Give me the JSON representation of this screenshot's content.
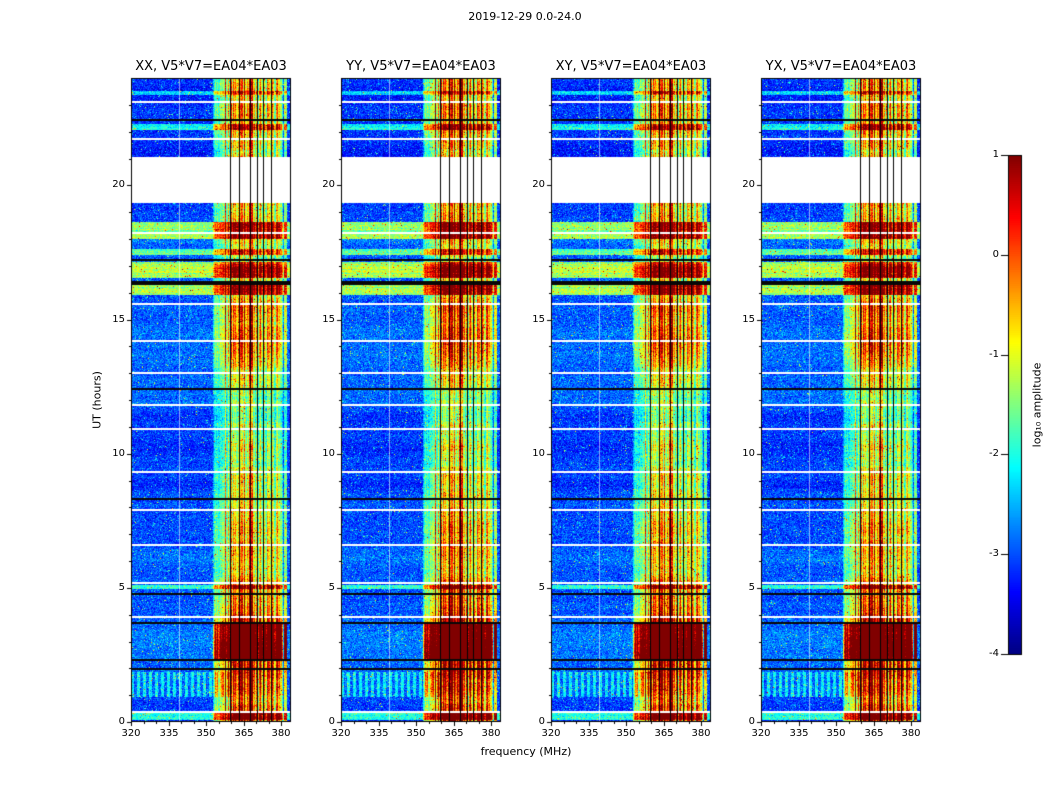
{
  "chart_data": {
    "type": "heatmap",
    "title": "2019-12-29 0.0-24.0",
    "xlabel": "frequency (MHz)",
    "ylabel": "UT (hours)",
    "x_range_mhz": [
      320,
      384
    ],
    "x_ticks": [
      320,
      335,
      350,
      365,
      380
    ],
    "x_minor_tick_step_mhz": 5,
    "y_range_hours": [
      0,
      24
    ],
    "y_ticks": [
      0,
      5,
      10,
      15,
      20
    ],
    "y_minor_tick_step_hours": 1,
    "colormap": "jet",
    "colorbar": {
      "label": "log₁₀ amplitude",
      "ticks": [
        1,
        0,
        -1,
        -2,
        -3,
        -4
      ],
      "range": [
        -4,
        1
      ]
    },
    "panels": [
      {
        "title": "XX, V5*V7=EA04*EA03"
      },
      {
        "title": "YY, V5*V7=EA04*EA03"
      },
      {
        "title": "XY, V5*V7=EA04*EA03"
      },
      {
        "title": "YX, V5*V7=EA04*EA03"
      }
    ],
    "features": {
      "background_log_amp": -3.05,
      "rfi_band_mhz": [
        356.5,
        379.5
      ],
      "rfi_subband_mhz": [
        352.5,
        356.8
      ],
      "narrow_line_mhz": [
        381.2,
        382.2
      ],
      "flagged_channels_mhz": [
        359.5,
        363.4,
        367.5,
        370.3,
        372.8,
        376.2
      ],
      "light_channel_mhz": 339,
      "data_gaps_hours": [
        [
          19.35,
          21.05
        ]
      ],
      "thin_gap_hours": [
        0.42,
        3.95,
        5.2,
        6.65,
        7.95,
        9.35,
        10.95,
        11.85,
        13.05,
        14.25,
        15.6,
        18.25,
        21.75,
        23.15
      ],
      "flagged_times_hours": [
        [
          16.35,
          4
        ],
        [
          17.2,
          2
        ],
        [
          1.98,
          2
        ],
        [
          2.32,
          2
        ],
        [
          3.68,
          2
        ],
        [
          4.78,
          2
        ],
        [
          8.32,
          2
        ],
        [
          12.4,
          2
        ],
        [
          22.42,
          2
        ]
      ],
      "broadband_rfi_hours": [
        [
          0.08,
          0.35,
          1.25
        ],
        [
          4.95,
          5.12,
          1.0
        ],
        [
          15.9,
          16.3,
          1.5
        ],
        [
          16.55,
          17.15,
          1.6
        ],
        [
          17.4,
          17.62,
          1.2
        ],
        [
          18.0,
          18.65,
          1.5
        ],
        [
          22.05,
          22.28,
          1.1
        ],
        [
          23.35,
          23.5,
          0.9
        ]
      ],
      "strong_burst_hours": [
        2.35,
        3.65
      ],
      "strong_burst_gain": 2.0,
      "comb_hours": [
        0.95,
        1.85
      ],
      "panel_band_gains": [
        1.0,
        1.1,
        1.03,
        1.06
      ]
    }
  }
}
